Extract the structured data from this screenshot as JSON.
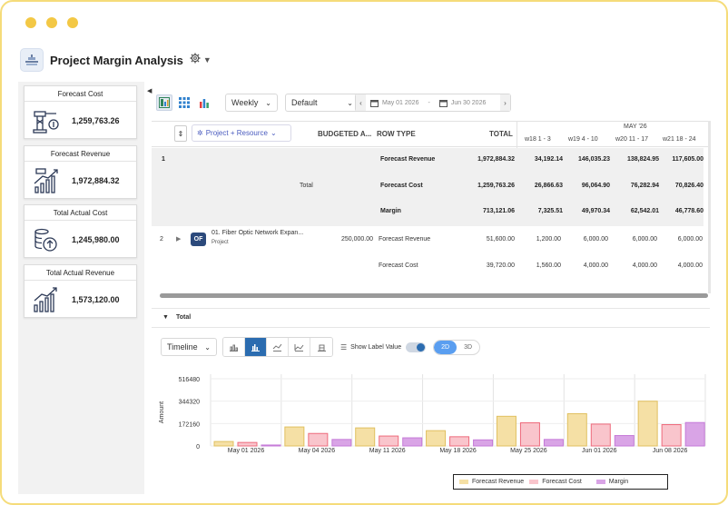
{
  "app": {
    "title": "Project Margin Analysis"
  },
  "kpis": [
    {
      "title": "Forecast Cost",
      "value": "1,259,763.26",
      "icon": "crane-dollar-icon"
    },
    {
      "title": "Forecast Revenue",
      "value": "1,972,884.32",
      "icon": "revenue-growth-icon"
    },
    {
      "title": "Total Actual Cost",
      "value": "1,245,980.00",
      "icon": "coin-stack-icon"
    },
    {
      "title": "Total Actual Revenue",
      "value": "1,573,120.00",
      "icon": "bar-growth-icon"
    }
  ],
  "toolbar": {
    "period": "Weekly",
    "view": "Default",
    "start_date": "May 01 2026",
    "date_sep": "-",
    "end_date": "Jun 30 2026"
  },
  "grid": {
    "group_label": "Project + Resource",
    "columns": {
      "budgeted": "BUDGETED A...",
      "row_type": "ROW TYPE",
      "total": "TOTAL"
    },
    "month": "MAY '26",
    "weeks": [
      "w18 1 - 3",
      "w19 4 - 10",
      "w20 11 - 17",
      "w21 18 - 24"
    ],
    "total_row": {
      "index": "1",
      "label": "Total",
      "rows": [
        {
          "type": "Forecast Revenue",
          "total": "1,972,884.32",
          "w": [
            "34,192.14",
            "146,035.23",
            "138,824.95",
            "117,605.00"
          ]
        },
        {
          "type": "Forecast Cost",
          "total": "1,259,763.26",
          "w": [
            "26,866.63",
            "96,064.90",
            "76,282.94",
            "70,826.40"
          ]
        },
        {
          "type": "Margin",
          "total": "713,121.06",
          "w": [
            "7,325.51",
            "49,970.34",
            "62,542.01",
            "46,778.60"
          ]
        }
      ]
    },
    "project_row": {
      "index": "2",
      "badge": "OF",
      "name": "01. Fiber Optic Network Expan...",
      "sub": "Project",
      "budget": "250,000.00",
      "rows": [
        {
          "type": "Forecast Revenue",
          "total": "51,600.00",
          "w": [
            "1,200.00",
            "6,000.00",
            "6,000.00",
            "6,000.00"
          ]
        },
        {
          "type": "Forecast Cost",
          "total": "39,720.00",
          "w": [
            "1,560.00",
            "4,000.00",
            "4,000.00",
            "4,000.00"
          ]
        }
      ]
    }
  },
  "section": {
    "title": "Total"
  },
  "chart_toolbar": {
    "mode": "Timeline",
    "show_label": "Show Label Value",
    "dim_2d": "2D",
    "dim_3d": "3D"
  },
  "chart_data": {
    "type": "bar",
    "ylabel": "Amount",
    "yticks": [
      "516480",
      "344320",
      "172160",
      "0"
    ],
    "ylim": [
      0,
      516480
    ],
    "categories": [
      "May 01 2026",
      "May 04 2026",
      "May 11 2026",
      "May 18 2026",
      "May 25 2026",
      "Jun 01 2026",
      "Jun 08 2026"
    ],
    "series": [
      {
        "name": "Forecast Revenue",
        "color": "#f5e0a5",
        "stroke": "#e0c060",
        "values": [
          34192,
          146035,
          138825,
          117605,
          228000,
          248000,
          344000
        ]
      },
      {
        "name": "Forecast Cost",
        "color": "#f9c5cc",
        "stroke": "#ee6b7c",
        "values": [
          26867,
          96065,
          76283,
          70826,
          178000,
          168000,
          164000
        ]
      },
      {
        "name": "Margin",
        "color": "#d9a4e6",
        "stroke": "#c57ad8",
        "values": [
          7326,
          49970,
          62542,
          46779,
          50000,
          80000,
          180000
        ]
      }
    ],
    "legend": "bottom-right",
    "grid": true
  }
}
